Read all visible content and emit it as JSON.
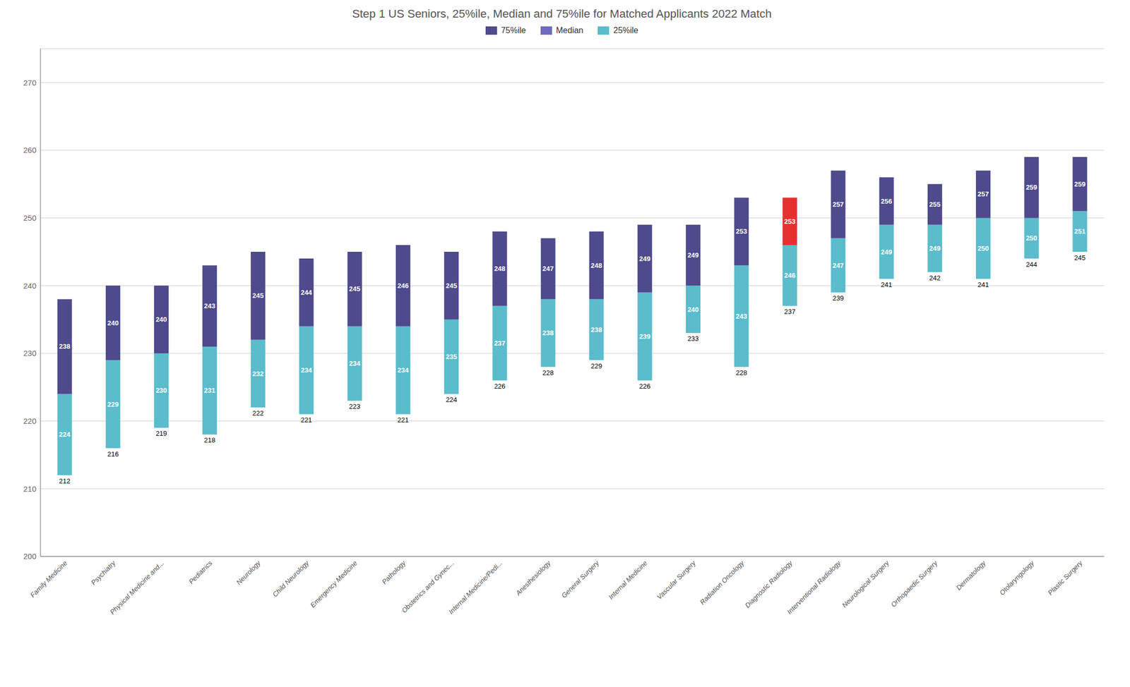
{
  "chart_data": {
    "type": "bar",
    "title": "Step 1 US Seniors, 25%ile, Median and 75%ile for Matched Applicants 2022 Match",
    "categories": [
      "Family Medicine",
      "Psychiatry",
      "Physical Medicine and...",
      "Pediatrics",
      "Neurology",
      "Child Neurology",
      "Emergency Medicine",
      "Pathology",
      "Obstetrics and Gynec...",
      "Internal Medicine/Pedi...",
      "Anesthesiology",
      "General Surgery",
      "Internal Medicine",
      "Vascular Surgery",
      "Radiation Oncology",
      "Diagnostic Radiology",
      "Interventional Radiology",
      "Neurological Surgery",
      "Orthopaedic Surgery",
      "Dermatology",
      "Otolaryngology",
      "Plastic Surgery"
    ],
    "series": [
      {
        "name": "75%ile",
        "color": "#4e4a8c",
        "colors": [
          "#4e4a8c",
          "#4e4a8c",
          "#4e4a8c",
          "#4e4a8c",
          "#4e4a8c",
          "#4e4a8c",
          "#4e4a8c",
          "#4e4a8c",
          "#4e4a8c",
          "#4e4a8c",
          "#4e4a8c",
          "#4e4a8c",
          "#4e4a8c",
          "#4e4a8c",
          "#4e4a8c",
          "#e63030",
          "#4e4a8c",
          "#4e4a8c",
          "#4e4a8c",
          "#4e4a8c",
          "#4e4a8c",
          "#4e4a8c"
        ],
        "values": [
          238,
          240,
          240,
          243,
          245,
          244,
          245,
          246,
          245,
          248,
          247,
          248,
          249,
          249,
          253,
          253,
          257,
          256,
          255,
          257,
          259,
          259
        ]
      },
      {
        "name": "Median",
        "color": "#6d6bbf",
        "values": [
          224,
          229,
          230,
          231,
          232,
          234,
          234,
          234,
          235,
          237,
          238,
          238,
          239,
          240,
          243,
          246,
          247,
          249,
          249,
          250,
          250,
          251
        ]
      },
      {
        "name": "25%ile",
        "color": "#5bbccc",
        "values": [
          212,
          216,
          219,
          218,
          222,
          221,
          223,
          221,
          224,
          226,
          228,
          229,
          226,
          233,
          228,
          237,
          239,
          241,
          242,
          241,
          244,
          245
        ]
      }
    ],
    "ylim": [
      200,
      275
    ],
    "yticks": [
      200,
      210,
      220,
      230,
      240,
      250,
      260,
      270
    ],
    "grid": true,
    "legend": "top",
    "data_labels": true
  }
}
